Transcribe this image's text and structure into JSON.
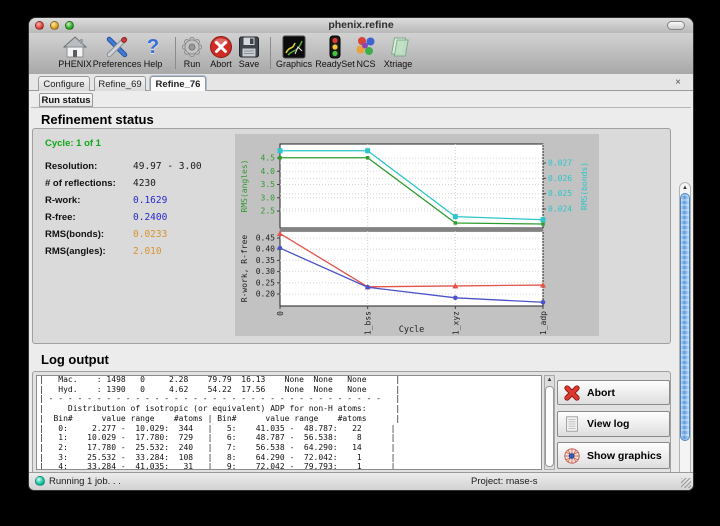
{
  "window": {
    "title": "phenix.refine"
  },
  "toolbar": {
    "items": [
      {
        "label": "PHENIX"
      },
      {
        "label": "Preferences"
      },
      {
        "label": "Help"
      },
      {
        "label": "Run"
      },
      {
        "label": "Abort"
      },
      {
        "label": "Save"
      },
      {
        "label": "Graphics"
      },
      {
        "label": "ReadySet"
      },
      {
        "label": "NCS"
      },
      {
        "label": "Xtriage"
      }
    ]
  },
  "tabs": {
    "items": [
      {
        "label": "Configure"
      },
      {
        "label": "Refine_69"
      },
      {
        "label": "Refine_76"
      }
    ],
    "close": "×"
  },
  "subtabs": {
    "run_status": "Run status"
  },
  "refinement": {
    "heading": "Refinement status",
    "cycle": {
      "text": "Cycle: 1 of 1",
      "color": "#0fa818"
    },
    "stats": [
      {
        "label": "Resolution:",
        "value": "49.97 - 3.00",
        "color": "#1a1a1a"
      },
      {
        "label": "# of reflections:",
        "value": "4230",
        "color": "#1a1a1a"
      },
      {
        "label": "R-work:",
        "value": "0.1629",
        "color": "#2929d1"
      },
      {
        "label": "R-free:",
        "value": "0.2400",
        "color": "#2929d1"
      },
      {
        "label": "RMS(bonds):",
        "value": "0.0233",
        "color": "#d9922f"
      },
      {
        "label": "RMS(angles):",
        "value": "2.010",
        "color": "#d9922f"
      }
    ]
  },
  "chart_data": {
    "type": "line",
    "x_categories": [
      "0",
      "1_bss",
      "1_xyz",
      "1_adp"
    ],
    "xlabel": "Cycle",
    "grid": true,
    "subplots": [
      {
        "axes": [
          {
            "side": "left",
            "label": "RMS(angles)",
            "color": "#2e9b2e",
            "ticks": [
              4.5,
              4.0,
              3.5,
              3.0,
              2.5
            ],
            "tick_labels": [
              "4.5",
              "4.0",
              "3.5",
              "3.0",
              "2.5"
            ],
            "range": [
              1.86,
              5.03
            ]
          },
          {
            "side": "right",
            "label": "RMS(bonds)",
            "color": "#2cc5c9",
            "ticks": [
              0.027,
              0.026,
              0.025,
              0.024
            ],
            "tick_labels": [
              "0.027",
              "0.026",
              "0.025",
              "0.024"
            ],
            "range": [
              0.02276,
              0.02824
            ]
          }
        ],
        "series": [
          {
            "name": "RMS(angles)",
            "axis": 0,
            "color": "#2e9b2e",
            "marker": "square",
            "marker_size": 3.5,
            "values": [
              4.51,
              4.51,
              2.05,
              2.01
            ]
          },
          {
            "name": "RMS(bonds)",
            "axis": 1,
            "color": "#2cc5c9",
            "marker": "square",
            "marker_size": 5,
            "values": [
              0.0278,
              0.0278,
              0.0235,
              0.0233
            ]
          }
        ]
      },
      {
        "axes": [
          {
            "side": "left",
            "label": "R-work, R-free",
            "color": "#222222",
            "ticks": [
              0.45,
              0.4,
              0.35,
              0.3,
              0.25,
              0.2
            ],
            "tick_labels": [
              "0.45",
              "0.40",
              "0.35",
              "0.30",
              "0.25",
              "0.20"
            ],
            "range": [
              0.1464,
              0.4813
            ]
          }
        ],
        "series": [
          {
            "name": "R-free",
            "axis": 0,
            "color": "#e0544b",
            "marker": "triangle",
            "marker_size": 6,
            "values": [
              0.47,
              0.232,
              0.236,
              0.24
            ]
          },
          {
            "name": "R-work",
            "axis": 0,
            "color": "#4a52c8",
            "marker": "circle",
            "marker_size": 2.3,
            "values": [
              0.405,
              0.23,
              0.183,
              0.163
            ]
          }
        ]
      }
    ]
  },
  "log": {
    "heading": "Log output",
    "lines": [
      "|   Mac.    : 1498   0     2.28    79.79  16.13    None  None   None      |",
      "|   Hyd.    : 1390   0     4.62    54.22  17.56    None  None   None      |",
      "| - - - - - - - - - - - - - - - - - - - - - - - - - - - - - - - - - - -   |",
      "|     Distribution of isotropic (or equivalent) ADP for non-H atoms:      |",
      "|  Bin#      value range    #atoms | Bin#      value range    #atoms      |",
      "|   0:     2.277 -  10.029:  344   |   5:    41.035 -  48.787:   22      |",
      "|   1:    10.029 -  17.780:  729   |   6:    48.787 -  56.538:    8      |",
      "|   2:    17.780 -  25.532:  240   |   7:    56.538 -  64.290:   14      |",
      "|   3:    25.532 -  33.284:  108   |   8:    64.290 -  72.042:    1      |",
      "|   4:    33.284 -  41.035:   31   |   9:    72.042 -  79.793:    1      |"
    ]
  },
  "actions": [
    {
      "label": "Abort"
    },
    {
      "label": "View log"
    },
    {
      "label": "Show graphics"
    }
  ],
  "statusbar": {
    "status": "Running 1 job. . .",
    "project": "Project: rnase-s"
  }
}
